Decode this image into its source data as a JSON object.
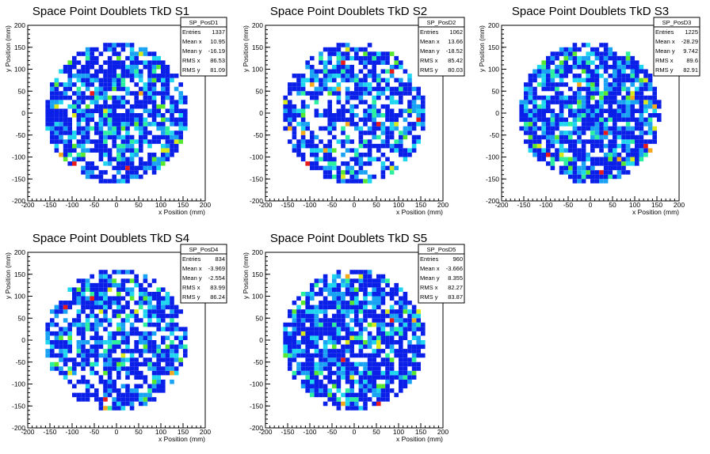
{
  "chart_data": [
    {
      "type": "heatmap",
      "title": "Space Point Doublets TkD S1",
      "xlabel": "x Position (mm)",
      "ylabel": "y Position (mm)",
      "xlim": [
        -200,
        200
      ],
      "ylim": [
        -200,
        200
      ],
      "x_ticks": [
        "-200",
        "-150",
        "-100",
        "-50",
        "0",
        "50",
        "100",
        "150",
        "200"
      ],
      "y_ticks": [
        "-200",
        "-150",
        "-100",
        "-50",
        "0",
        "50",
        "100",
        "150",
        "200"
      ],
      "color_scale": [
        "#0a1fe8",
        "#1aa2f5",
        "#1fd6f0",
        "#2cf0a0",
        "#58e830",
        "#d8e81a",
        "#f5a81a",
        "#e81a1a"
      ],
      "occupied_radius_mm": 160,
      "bin_size_mm": 10,
      "stats": {
        "name": "SP_PosD1",
        "rows": [
          {
            "label": "Entries",
            "value": "1337"
          },
          {
            "label": "Mean x",
            "value": "10.95"
          },
          {
            "label": "Mean y",
            "value": "-16.19"
          },
          {
            "label": "RMS x",
            "value": "86.53"
          },
          {
            "label": "RMS y",
            "value": "81.09"
          }
        ]
      }
    },
    {
      "type": "heatmap",
      "title": "Space Point Doublets TkD S2",
      "xlabel": "x Position (mm)",
      "ylabel": "y Position (mm)",
      "xlim": [
        -200,
        200
      ],
      "ylim": [
        -200,
        200
      ],
      "x_ticks": [
        "-200",
        "-150",
        "-100",
        "-50",
        "0",
        "50",
        "100",
        "150",
        "200"
      ],
      "y_ticks": [
        "-200",
        "-150",
        "-100",
        "-50",
        "0",
        "50",
        "100",
        "150",
        "200"
      ],
      "color_scale": [
        "#0a1fe8",
        "#1aa2f5",
        "#1fd6f0",
        "#2cf0a0",
        "#58e830",
        "#d8e81a",
        "#f5a81a",
        "#e81a1a"
      ],
      "occupied_radius_mm": 160,
      "bin_size_mm": 10,
      "stats": {
        "name": "SP_PosD2",
        "rows": [
          {
            "label": "Entries",
            "value": "1062"
          },
          {
            "label": "Mean x",
            "value": "13.66"
          },
          {
            "label": "Mean y",
            "value": "-18.52"
          },
          {
            "label": "RMS x",
            "value": "85.42"
          },
          {
            "label": "RMS y",
            "value": "80.03"
          }
        ]
      }
    },
    {
      "type": "heatmap",
      "title": "Space Point Doublets TkD S3",
      "xlabel": "x Position (mm)",
      "ylabel": "y Position (mm)",
      "xlim": [
        -200,
        200
      ],
      "ylim": [
        -200,
        200
      ],
      "x_ticks": [
        "-200",
        "-150",
        "-100",
        "-50",
        "0",
        "50",
        "100",
        "150",
        "200"
      ],
      "y_ticks": [
        "-200",
        "-150",
        "-100",
        "-50",
        "0",
        "50",
        "100",
        "150",
        "200"
      ],
      "color_scale": [
        "#0a1fe8",
        "#1aa2f5",
        "#1fd6f0",
        "#2cf0a0",
        "#58e830",
        "#d8e81a",
        "#f5a81a",
        "#e81a1a"
      ],
      "occupied_radius_mm": 160,
      "bin_size_mm": 10,
      "stats": {
        "name": "SP_PosD3",
        "rows": [
          {
            "label": "Entries",
            "value": "1225"
          },
          {
            "label": "Mean x",
            "value": "-28.29"
          },
          {
            "label": "Mean y",
            "value": "9.742"
          },
          {
            "label": "RMS x",
            "value": "89.6"
          },
          {
            "label": "RMS y",
            "value": "82.91"
          }
        ]
      }
    },
    {
      "type": "heatmap",
      "title": "Space Point Doublets TkD S4",
      "xlabel": "x Position (mm)",
      "ylabel": "y Position (mm)",
      "xlim": [
        -200,
        200
      ],
      "ylim": [
        -200,
        200
      ],
      "x_ticks": [
        "-200",
        "-150",
        "-100",
        "-50",
        "0",
        "50",
        "100",
        "150",
        "200"
      ],
      "y_ticks": [
        "-200",
        "-150",
        "-100",
        "-50",
        "0",
        "50",
        "100",
        "150",
        "200"
      ],
      "color_scale": [
        "#0a1fe8",
        "#1aa2f5",
        "#1fd6f0",
        "#2cf0a0",
        "#58e830",
        "#d8e81a",
        "#f5a81a",
        "#e81a1a"
      ],
      "occupied_radius_mm": 160,
      "bin_size_mm": 10,
      "stats": {
        "name": "SP_PosD4",
        "rows": [
          {
            "label": "Entries",
            "value": "834"
          },
          {
            "label": "Mean x",
            "value": "-3.969"
          },
          {
            "label": "Mean y",
            "value": "-2.554"
          },
          {
            "label": "RMS x",
            "value": "83.99"
          },
          {
            "label": "RMS y",
            "value": "86.24"
          }
        ]
      }
    },
    {
      "type": "heatmap",
      "title": "Space Point Doublets TkD S5",
      "xlabel": "x Position (mm)",
      "ylabel": "y Position (mm)",
      "xlim": [
        -200,
        200
      ],
      "ylim": [
        -200,
        200
      ],
      "x_ticks": [
        "-200",
        "-150",
        "-100",
        "-50",
        "0",
        "50",
        "100",
        "150",
        "200"
      ],
      "y_ticks": [
        "-200",
        "-150",
        "-100",
        "-50",
        "0",
        "50",
        "100",
        "150",
        "200"
      ],
      "color_scale": [
        "#0a1fe8",
        "#1aa2f5",
        "#1fd6f0",
        "#2cf0a0",
        "#58e830",
        "#d8e81a",
        "#f5a81a",
        "#e81a1a"
      ],
      "occupied_radius_mm": 160,
      "bin_size_mm": 10,
      "stats": {
        "name": "SP_PosD5",
        "rows": [
          {
            "label": "Entries",
            "value": "960"
          },
          {
            "label": "Mean x",
            "value": "-3.666"
          },
          {
            "label": "Mean y",
            "value": "8.355"
          },
          {
            "label": "RMS x",
            "value": "82.27"
          },
          {
            "label": "RMS y",
            "value": "83.87"
          }
        ]
      }
    }
  ]
}
